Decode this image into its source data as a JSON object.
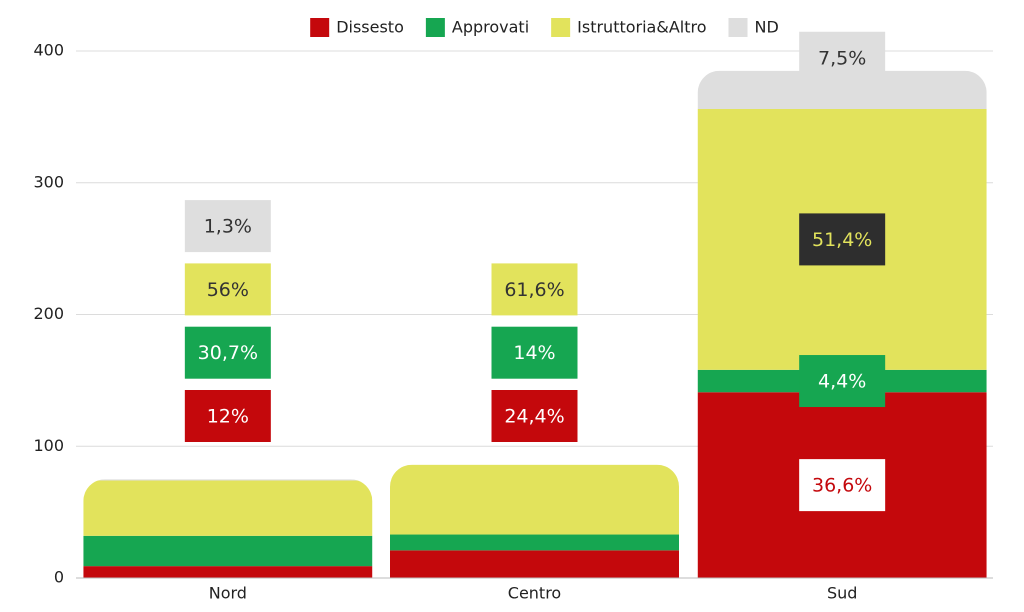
{
  "chart_data": {
    "type": "stacked_bar",
    "categories": [
      "Nord",
      "Centro",
      "Sud"
    ],
    "series": [
      {
        "name": "Dissesto",
        "color": "#c4080c",
        "values": [
          9,
          21,
          141
        ],
        "percent_labels": [
          "12%",
          "24,4%",
          "36,6%"
        ]
      },
      {
        "name": "Approvati",
        "color": "#16a651",
        "values": [
          23,
          12,
          17
        ],
        "percent_labels": [
          "30,7%",
          "14%",
          "4,4%"
        ]
      },
      {
        "name": "Istruttoria&Altro",
        "color": "#e2e35c",
        "values": [
          42,
          53,
          198
        ],
        "percent_labels": [
          "56%",
          "61,6%",
          "51,4%"
        ]
      },
      {
        "name": "ND",
        "color": "#dedede",
        "values": [
          1,
          0,
          29
        ],
        "percent_labels": [
          "1,3%",
          null,
          "7,5%"
        ]
      }
    ],
    "ylim": [
      0,
      400
    ],
    "yticks": [
      0,
      100,
      200,
      300,
      400
    ],
    "grid": true,
    "legend": "top"
  }
}
